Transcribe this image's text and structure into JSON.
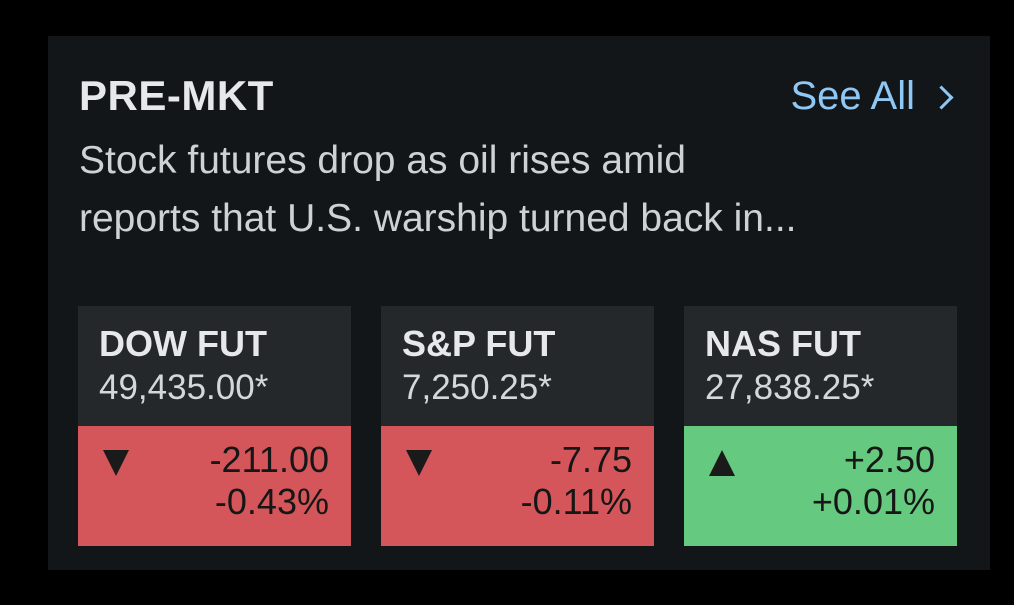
{
  "card": {
    "title": "PRE-MKT",
    "see_all_label": "See All",
    "headline_line1": "Stock futures drop as oil rises amid",
    "headline_line2": "reports that U.S. warship turned back in..."
  },
  "tiles": [
    {
      "name": "DOW FUT",
      "price": "49,435.00*",
      "change": "-211.00",
      "change_pct": "-0.43%",
      "direction": "down"
    },
    {
      "name": "S&P FUT",
      "price": "7,250.25*",
      "change": "-7.75",
      "change_pct": "-0.11%",
      "direction": "down"
    },
    {
      "name": "NAS FUT",
      "price": "27,838.25*",
      "change": "+2.50",
      "change_pct": "+0.01%",
      "direction": "up"
    }
  ],
  "colors": {
    "background": "#000000",
    "card": "#131619",
    "tile_header": "#25282b",
    "link": "#8fc7f5",
    "down": "#d4565a",
    "up": "#65ca7f"
  },
  "icons": {
    "see_all": "chevron-right-icon",
    "down": "triangle-down-icon",
    "up": "triangle-up-icon"
  }
}
